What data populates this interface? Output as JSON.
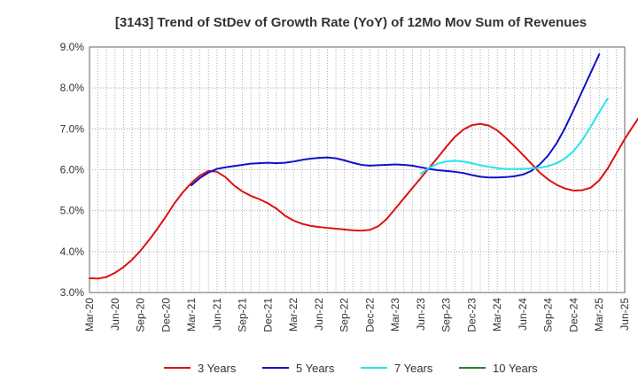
{
  "chart_data": {
    "type": "line",
    "title": "[3143]  Trend of StDev of Growth Rate (YoY) of 12Mo Mov Sum of Revenues",
    "xlabel": "",
    "ylabel": "",
    "ylim": [
      3.0,
      9.0
    ],
    "yticks": [
      3.0,
      4.0,
      5.0,
      6.0,
      7.0,
      8.0,
      9.0
    ],
    "ytick_labels": [
      "3.0%",
      "4.0%",
      "5.0%",
      "6.0%",
      "7.0%",
      "8.0%",
      "9.0%"
    ],
    "x_start": "Mar-20",
    "x_tick_labels": [
      "Mar-20",
      "Jun-20",
      "Sep-20",
      "Dec-20",
      "Mar-21",
      "Jun-21",
      "Sep-21",
      "Dec-21",
      "Mar-22",
      "Jun-22",
      "Sep-22",
      "Dec-22",
      "Mar-23",
      "Jun-23",
      "Sep-23",
      "Dec-23",
      "Mar-24",
      "Jun-24",
      "Sep-24",
      "Dec-24",
      "Mar-25",
      "Jun-25"
    ],
    "grid": true,
    "legend_position": "bottom",
    "series": [
      {
        "name": "3 Years",
        "color": "#dd1111",
        "start_index": 0,
        "values": [
          3.35,
          3.34,
          3.38,
          3.48,
          3.62,
          3.8,
          4.02,
          4.28,
          4.56,
          4.86,
          5.18,
          5.45,
          5.68,
          5.86,
          5.97,
          5.95,
          5.82,
          5.62,
          5.47,
          5.36,
          5.28,
          5.18,
          5.05,
          4.88,
          4.76,
          4.68,
          4.63,
          4.6,
          4.58,
          4.56,
          4.54,
          4.52,
          4.51,
          4.53,
          4.62,
          4.8,
          5.05,
          5.3,
          5.55,
          5.8,
          6.05,
          6.3,
          6.56,
          6.8,
          6.98,
          7.09,
          7.12,
          7.08,
          6.96,
          6.78,
          6.58,
          6.37,
          6.15,
          5.93,
          5.76,
          5.63,
          5.54,
          5.49,
          5.5,
          5.56,
          5.74,
          6.03,
          6.39,
          6.75,
          7.07,
          7.38
        ]
      },
      {
        "name": "5 Years",
        "color": "#1111cc",
        "start_index": 12,
        "values": [
          5.62,
          5.8,
          5.93,
          6.02,
          6.06,
          6.09,
          6.12,
          6.15,
          6.16,
          6.17,
          6.16,
          6.17,
          6.2,
          6.24,
          6.27,
          6.29,
          6.3,
          6.28,
          6.23,
          6.17,
          6.12,
          6.1,
          6.11,
          6.12,
          6.13,
          6.12,
          6.1,
          6.06,
          6.02,
          5.99,
          5.97,
          5.95,
          5.92,
          5.87,
          5.83,
          5.81,
          5.81,
          5.82,
          5.84,
          5.88,
          5.97,
          6.13,
          6.35,
          6.65,
          7.03,
          7.47,
          7.92,
          8.37,
          8.82
        ]
      },
      {
        "name": "7 Years",
        "color": "#22e5ee",
        "start_index": 39,
        "values": [
          5.9,
          6.05,
          6.15,
          6.2,
          6.22,
          6.2,
          6.16,
          6.11,
          6.07,
          6.04,
          6.02,
          6.02,
          6.02,
          6.03,
          6.05,
          6.09,
          6.16,
          6.28,
          6.46,
          6.72,
          7.05,
          7.41,
          7.74
        ]
      },
      {
        "name": "10 Years",
        "color": "#228822",
        "start_index": 0,
        "values": []
      }
    ]
  }
}
